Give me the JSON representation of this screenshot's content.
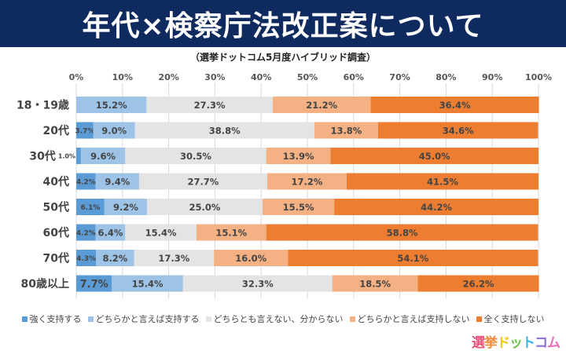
{
  "title": "年代×検察庁法改正案について",
  "subtitle": "（選挙ドットコム5月度ハイブリッド調査）",
  "logo": "選挙ドットコム",
  "chart_data": {
    "type": "bar",
    "orientation": "horizontal-stacked-100",
    "categories": [
      "18・19歳",
      "20代",
      "30代",
      "40代",
      "50代",
      "60代",
      "70代",
      "80歳以上"
    ],
    "xticks": [
      "0%",
      "10%",
      "20%",
      "30%",
      "40%",
      "50%",
      "60%",
      "70%",
      "80%",
      "90%",
      "100%"
    ],
    "xlim": [
      0,
      100
    ],
    "grid": true,
    "legend_position": "bottom",
    "series": [
      {
        "name": "強く支持する",
        "color": "#5b9bd5",
        "values": [
          0,
          3.7,
          1.0,
          4.2,
          6.1,
          4.2,
          4.3,
          7.7
        ]
      },
      {
        "name": "どちらかと言えば支持する",
        "color": "#9dc3e6",
        "values": [
          15.2,
          9.0,
          9.6,
          9.4,
          9.2,
          6.4,
          8.2,
          15.4
        ]
      },
      {
        "name": "どちらとも言えない、分からない",
        "color": "#e4e4e4",
        "values": [
          27.3,
          38.8,
          30.5,
          27.7,
          25.0,
          15.4,
          17.3,
          32.3
        ]
      },
      {
        "name": "どちらかと言えば支持しない",
        "color": "#f4b183",
        "values": [
          21.2,
          13.8,
          13.9,
          17.2,
          15.5,
          15.1,
          16.0,
          18.5
        ]
      },
      {
        "name": "全く支持しない",
        "color": "#ed7d31",
        "values": [
          36.4,
          34.6,
          45.0,
          41.5,
          44.2,
          58.8,
          54.1,
          26.2
        ]
      }
    ]
  }
}
